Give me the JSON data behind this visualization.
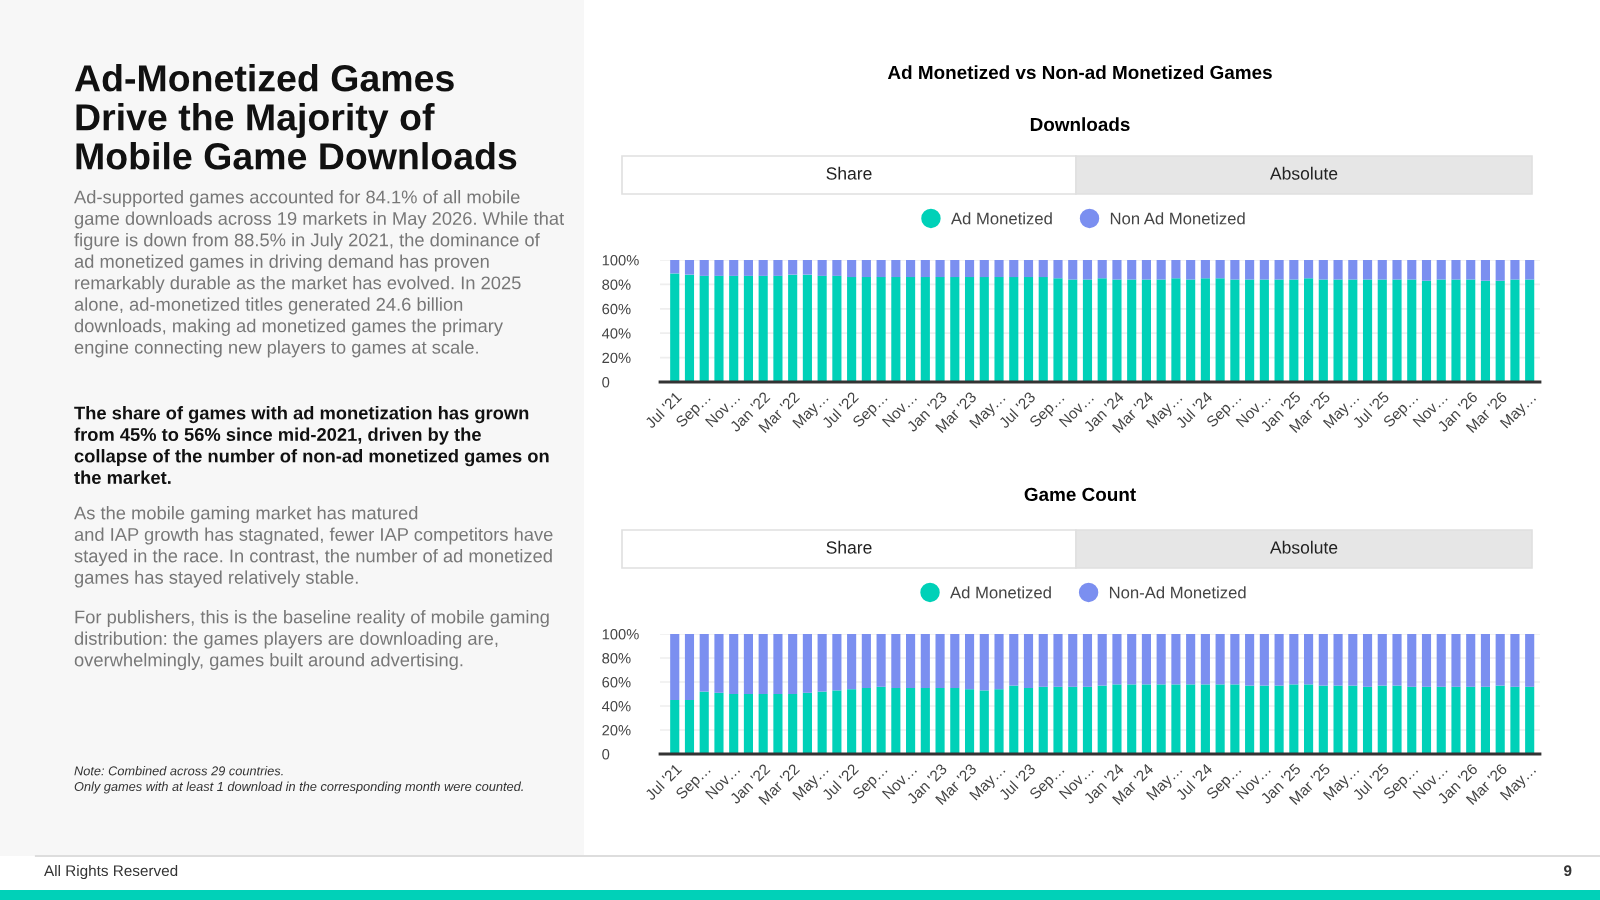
{
  "chart_data": [
    {
      "type": "other",
      "title": "Ad-Monetized Games\nDrive the Majority of\nMobile Game Downloads",
      "annotations": [
        "Ad-supported games accounted for 84.1% of all mobile\ngame downloads across 19 markets in May 2026. While that\nfigure is down from 88.5% in July 2021, the dominance of\nad monetized games in driving demand has proven\nremarkably durable as the market has evolved. In 2025\nalone, ad-monetized titles generated 24.6 billion\ndownloads, making ad monetized games the primary\nengine connecting new players to games at scale.",
        "The share of games with ad monetization has grown\nfrom 45% to 56% since mid-2021, driven by the\ncollapse of the number of non-ad monetized games on\nthe market.",
        "As the mobile gaming market has matured\nand IAP growth has stagnated, fewer IAP competitors have\nstayed in the race. In contrast, the number of ad monetized\ngames has stayed relatively stable.",
        "For publishers, this is the baseline reality of mobile gaming\ndistribution: the games players are downloading are,\noverwhelmingly, games built around advertising.",
        "Note: Combined across 29 countries.\nOnly games with at least 1 download in the corresponding month were counted.",
        "All Rights Reserved",
        "9"
      ]
    },
    {
      "type": "bar",
      "stacked": true,
      "title": "Ad Monetized vs Non-ad Monetized Games",
      "subtitle": "Downloads",
      "annotations": [
        "Share",
        "Absolute"
      ],
      "categories": [
        "Jul '21",
        null,
        "Sep…",
        null,
        "Nov…",
        null,
        "Jan '22",
        null,
        "Mar '22",
        null,
        "May…",
        null,
        "Jul '22",
        null,
        "Sep…",
        null,
        "Nov…",
        null,
        "Jan '23",
        null,
        "Mar '23",
        null,
        "May…",
        null,
        "Jul '23",
        null,
        "Sep…",
        null,
        "Nov…",
        null,
        "Jan '24",
        null,
        "Mar '24",
        null,
        "May…",
        null,
        "Jul '24",
        null,
        "Sep…",
        null,
        "Nov…",
        null,
        "Jan '25",
        null,
        "Mar '25",
        null,
        "May…",
        null,
        "Jul '25",
        null,
        "Sep…",
        null,
        "Nov…",
        null,
        "Jan '26",
        null,
        "Mar '26",
        null,
        "May…"
      ],
      "series": [
        {
          "name": "Ad Monetized",
          "color": "#00d1b8",
          "values": [
            89,
            88,
            87,
            87,
            87,
            87,
            87,
            87,
            88,
            88,
            87,
            87,
            86,
            86,
            86,
            86,
            86,
            86,
            86,
            86,
            86,
            86,
            86,
            86,
            86,
            86,
            85,
            84,
            84,
            85,
            84,
            84,
            84,
            84,
            85,
            84,
            85,
            85,
            84,
            84,
            84,
            84,
            84,
            85,
            84,
            84,
            84,
            84,
            84,
            84,
            84,
            83,
            84,
            84,
            84,
            83,
            83,
            84,
            84
          ]
        },
        {
          "name": "Non Ad Monetized",
          "color": "#7b8ff0",
          "values": [
            11,
            12,
            13,
            13,
            13,
            13,
            13,
            13,
            12,
            12,
            13,
            13,
            14,
            14,
            14,
            14,
            14,
            14,
            14,
            14,
            14,
            14,
            14,
            14,
            14,
            14,
            15,
            16,
            16,
            15,
            16,
            16,
            16,
            16,
            15,
            16,
            15,
            15,
            16,
            16,
            16,
            16,
            16,
            15,
            16,
            16,
            16,
            16,
            16,
            16,
            16,
            17,
            16,
            16,
            16,
            17,
            17,
            16,
            16
          ]
        }
      ],
      "ylim": [
        0,
        100
      ],
      "yticks": [
        {
          "value": 0,
          "label": "0"
        },
        {
          "value": 20,
          "label": "20%"
        },
        {
          "value": 40,
          "label": "40%"
        },
        {
          "value": 60,
          "label": "60%"
        },
        {
          "value": 80,
          "label": "80%"
        },
        {
          "value": 100,
          "label": "100%"
        }
      ],
      "grid": "y",
      "legend": "top"
    },
    {
      "type": "bar",
      "stacked": true,
      "title": "Game Count",
      "annotations": [
        "Share",
        "Absolute"
      ],
      "categories": [
        "Jul '21",
        null,
        "Sep…",
        null,
        "Nov…",
        null,
        "Jan '22",
        null,
        "Mar '22",
        null,
        "May…",
        null,
        "Jul '22",
        null,
        "Sep…",
        null,
        "Nov…",
        null,
        "Jan '23",
        null,
        "Mar '23",
        null,
        "May…",
        null,
        "Jul '23",
        null,
        "Sep…",
        null,
        "Nov…",
        null,
        "Jan '24",
        null,
        "Mar '24",
        null,
        "May…",
        null,
        "Jul '24",
        null,
        "Sep…",
        null,
        "Nov…",
        null,
        "Jan '25",
        null,
        "Mar '25",
        null,
        "May…",
        null,
        "Jul '25",
        null,
        "Sep…",
        null,
        "Nov…",
        null,
        "Jan '26",
        null,
        "Mar '26",
        null,
        "May…"
      ],
      "series": [
        {
          "name": "Ad Monetized",
          "color": "#00d1b8",
          "values": [
            45,
            45,
            52,
            51,
            50,
            50,
            50,
            50,
            50,
            51,
            52,
            53,
            54,
            55,
            56,
            55,
            55,
            55,
            55,
            55,
            54,
            53,
            54,
            57,
            55,
            56,
            56,
            56,
            56,
            57,
            58,
            58,
            58,
            58,
            58,
            58,
            58,
            58,
            58,
            57,
            57,
            57,
            58,
            58,
            57,
            57,
            57,
            56,
            57,
            57,
            56,
            56,
            56,
            56,
            56,
            56,
            57,
            56,
            56
          ]
        },
        {
          "name": "Non-Ad Monetized",
          "color": "#7b8ff0",
          "values": [
            55,
            55,
            48,
            49,
            50,
            50,
            50,
            50,
            50,
            49,
            48,
            47,
            46,
            45,
            44,
            45,
            45,
            45,
            45,
            45,
            46,
            47,
            46,
            43,
            45,
            44,
            44,
            44,
            44,
            43,
            42,
            42,
            42,
            42,
            42,
            42,
            42,
            42,
            42,
            43,
            43,
            43,
            42,
            42,
            43,
            43,
            43,
            44,
            43,
            43,
            44,
            44,
            44,
            44,
            44,
            44,
            43,
            44,
            44
          ]
        }
      ],
      "ylim": [
        0,
        100
      ],
      "yticks": [
        {
          "value": 0,
          "label": "0"
        },
        {
          "value": 20,
          "label": "20%"
        },
        {
          "value": 40,
          "label": "40%"
        },
        {
          "value": 60,
          "label": "60%"
        },
        {
          "value": 80,
          "label": "80%"
        },
        {
          "value": 100,
          "label": "100%"
        }
      ],
      "grid": "y",
      "legend": "top"
    }
  ]
}
